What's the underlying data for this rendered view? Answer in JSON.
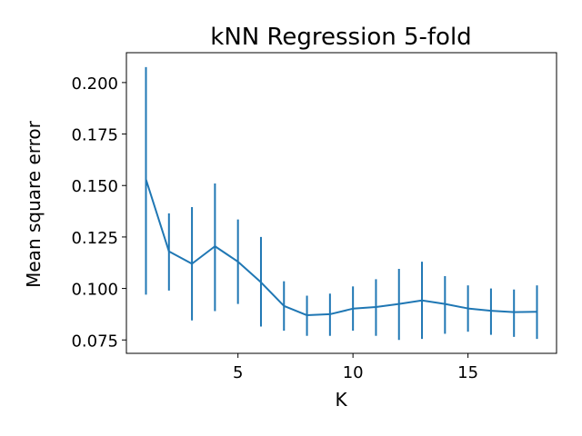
{
  "chart_data": {
    "type": "line",
    "title": "kNN Regression 5-fold",
    "xlabel": "K",
    "ylabel": "Mean square error",
    "xlim": [
      0.15,
      18.85
    ],
    "ylim": [
      0.0685,
      0.2145
    ],
    "xticks": [
      5,
      10,
      15
    ],
    "xtick_labels": [
      "5",
      "10",
      "15"
    ],
    "yticks": [
      0.075,
      0.1,
      0.125,
      0.15,
      0.175,
      0.2
    ],
    "ytick_labels": [
      "0.075",
      "0.100",
      "0.125",
      "0.150",
      "0.175",
      "0.200"
    ],
    "grid": false,
    "series": [
      {
        "color": "#1f77b4",
        "x": [
          1,
          2,
          3,
          4,
          5,
          6,
          7,
          8,
          9,
          10,
          11,
          12,
          13,
          14,
          15,
          16,
          17,
          18
        ],
        "y": [
          0.153,
          0.118,
          0.112,
          0.1205,
          0.113,
          0.103,
          0.0915,
          0.087,
          0.0875,
          0.0902,
          0.091,
          0.0925,
          0.0942,
          0.0925,
          0.0903,
          0.0892,
          0.0885,
          0.0887
        ],
        "yerr_low": [
          0.097,
          0.099,
          0.0845,
          0.089,
          0.0925,
          0.0815,
          0.0795,
          0.077,
          0.077,
          0.0795,
          0.077,
          0.075,
          0.0755,
          0.078,
          0.079,
          0.0775,
          0.0765,
          0.0755
        ],
        "yerr_high": [
          0.2075,
          0.1365,
          0.1395,
          0.151,
          0.1335,
          0.125,
          0.1035,
          0.0965,
          0.0975,
          0.101,
          0.1045,
          0.1095,
          0.113,
          0.106,
          0.1015,
          0.1,
          0.0995,
          0.1015
        ]
      }
    ]
  }
}
